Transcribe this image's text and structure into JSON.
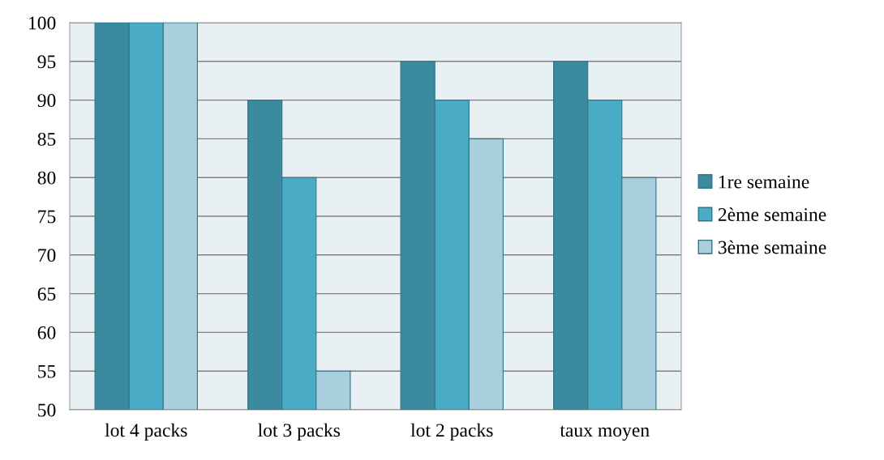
{
  "chart_data": {
    "type": "bar",
    "categories": [
      "lot 4 packs",
      "lot 3 packs",
      "lot 2 packs",
      "taux moyen"
    ],
    "series": [
      {
        "name": "1re semaine",
        "color": "#3b8aa0",
        "values": [
          100,
          90,
          95,
          95
        ]
      },
      {
        "name": "2ème semaine",
        "color": "#4aabc6",
        "values": [
          100,
          80,
          90,
          90
        ]
      },
      {
        "name": "3ème semaine",
        "color": "#a9cedd",
        "values": [
          100,
          55,
          85,
          80
        ]
      }
    ],
    "ylim": [
      50,
      100
    ],
    "yticks": [
      50,
      55,
      60,
      65,
      70,
      75,
      80,
      85,
      90,
      95,
      100
    ],
    "grid": "y",
    "legend": "right"
  }
}
